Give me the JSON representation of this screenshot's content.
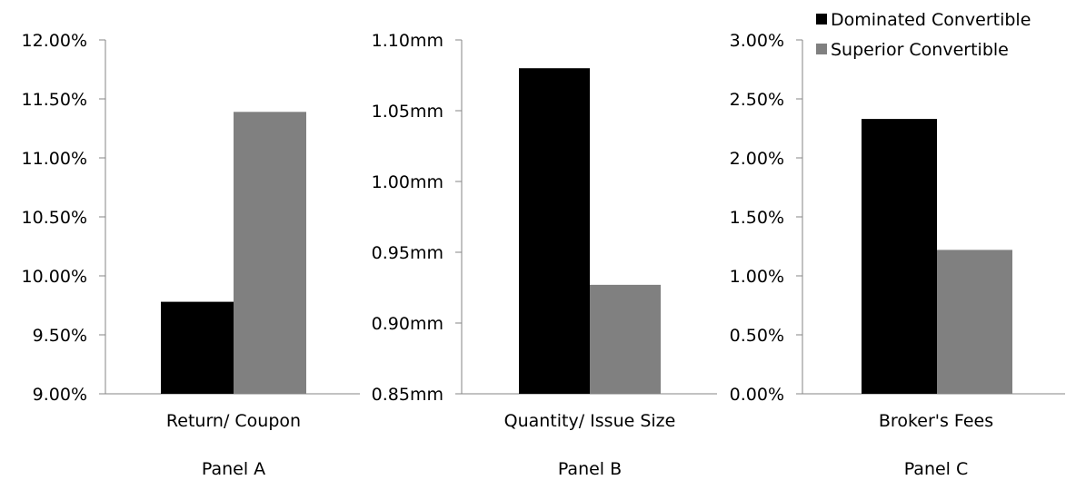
{
  "legend": [
    {
      "label": "Dominated Convertible",
      "color": "#000000"
    },
    {
      "label": "Superior Convertible",
      "color": "#808080"
    }
  ],
  "chart_data": [
    {
      "type": "bar",
      "panel": "Panel A",
      "categories": [
        "Return/ Coupon"
      ],
      "series": [
        {
          "name": "Dominated Convertible",
          "values": [
            9.78
          ],
          "color": "#000000"
        },
        {
          "name": "Superior Convertible",
          "values": [
            11.39
          ],
          "color": "#808080"
        }
      ],
      "ylim": [
        9.0,
        12.0
      ],
      "yticks": [
        9.0,
        9.5,
        10.0,
        10.5,
        11.0,
        11.5,
        12.0
      ],
      "ytick_labels": [
        "9.00%",
        "9.50%",
        "10.00%",
        "10.50%",
        "11.00%",
        "11.50%",
        "12.00%"
      ]
    },
    {
      "type": "bar",
      "panel": "Panel B",
      "categories": [
        "Quantity/ Issue Size"
      ],
      "series": [
        {
          "name": "Dominated Convertible",
          "values": [
            1.08
          ],
          "color": "#000000"
        },
        {
          "name": "Superior Convertible",
          "values": [
            0.927
          ],
          "color": "#808080"
        }
      ],
      "ylim": [
        0.85,
        1.1
      ],
      "yticks": [
        0.85,
        0.9,
        0.95,
        1.0,
        1.05,
        1.1
      ],
      "ytick_labels": [
        "0.85mm",
        "0.90mm",
        "0.95mm",
        "1.00mm",
        "1.05mm",
        "1.10mm"
      ]
    },
    {
      "type": "bar",
      "panel": "Panel C",
      "categories": [
        "Broker's Fees"
      ],
      "series": [
        {
          "name": "Dominated Convertible",
          "values": [
            2.33
          ],
          "color": "#000000"
        },
        {
          "name": "Superior Convertible",
          "values": [
            1.22
          ],
          "color": "#808080"
        }
      ],
      "ylim": [
        0.0,
        3.0
      ],
      "yticks": [
        0.0,
        0.5,
        1.0,
        1.5,
        2.0,
        2.5,
        3.0
      ],
      "ytick_labels": [
        "0.00%",
        "0.50%",
        "1.00%",
        "1.50%",
        "2.00%",
        "2.50%",
        "3.00%"
      ]
    }
  ]
}
